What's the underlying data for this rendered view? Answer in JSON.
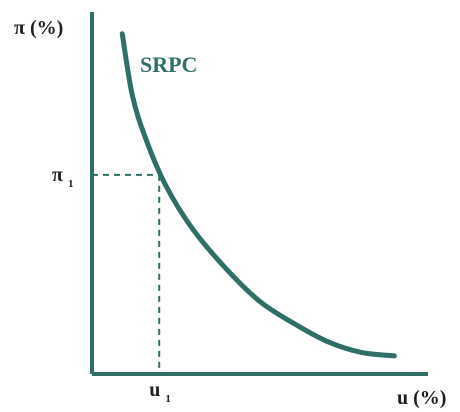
{
  "chart_data": {
    "type": "line",
    "title": "",
    "ylabel": "π (%)",
    "xlabel": "u (%)",
    "grid": false,
    "xlim": [
      0,
      10
    ],
    "ylim": [
      0,
      10
    ],
    "series": [
      {
        "name": "SRPC",
        "x": [
          0.9,
          1.2,
          1.6,
          2.2,
          3.0,
          4.0,
          5.0,
          6.0,
          7.0,
          8.0,
          9.0
        ],
        "y": [
          9.4,
          7.7,
          6.5,
          5.2,
          4.0,
          2.9,
          2.0,
          1.4,
          0.9,
          0.6,
          0.5
        ]
      }
    ],
    "highlight_point": {
      "x": 2.0,
      "y": 5.5,
      "x_tick_label": "u",
      "x_tick_subscript": "1",
      "y_tick_label": "π",
      "y_tick_subscript": "1"
    }
  },
  "colors": {
    "axis": "#2f6f67",
    "curve": "#2f6f67",
    "dashed": "#2f6f67",
    "text": "#1f1f1f"
  }
}
